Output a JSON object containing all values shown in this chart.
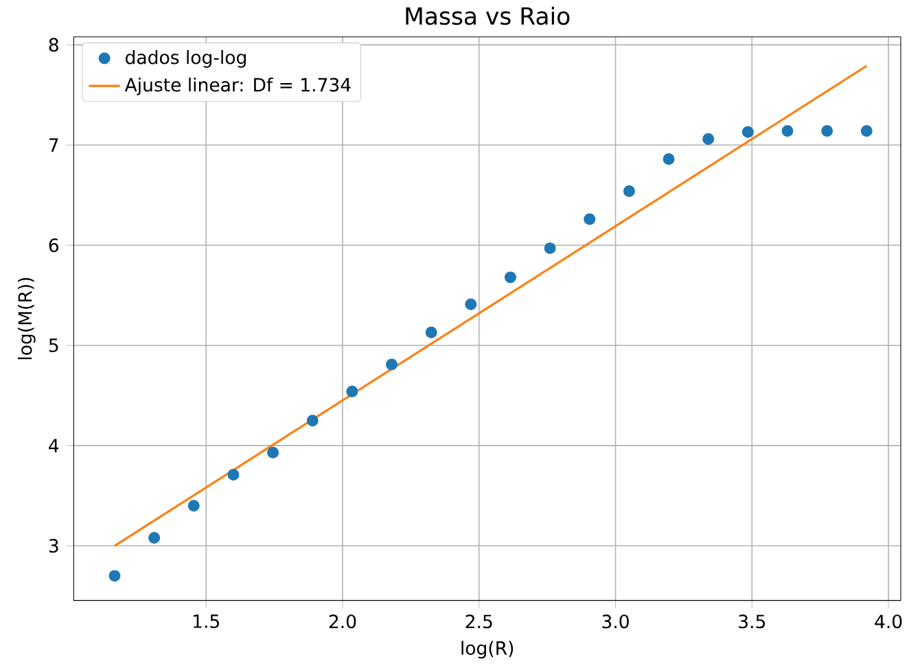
{
  "chart_data": {
    "type": "scatter",
    "title": "Massa vs Raio",
    "xlabel": "log(R)",
    "ylabel": "log(M(R))",
    "xlim": [
      1.015,
      4.045
    ],
    "ylim": [
      2.455,
      8.08
    ],
    "xticks": [
      1.5,
      {
        "value": 2,
        "label": "2.0"
      },
      2.5,
      {
        "value": 3,
        "label": "3.0"
      },
      3.5,
      {
        "value": 4,
        "label": "4.0"
      }
    ],
    "yticks": [
      3,
      4,
      5,
      6,
      7,
      8
    ],
    "grid": true,
    "legend": "top left",
    "series": [
      {
        "name": "dados log-log",
        "color": "#1f77b4",
        "x": [
          1.165,
          1.31,
          1.455,
          1.6,
          1.745,
          1.89,
          2.035,
          2.18,
          2.325,
          2.47,
          2.615,
          2.76,
          2.905,
          3.05,
          3.195,
          3.34,
          3.485,
          3.63,
          3.775,
          3.92
        ],
        "values": [
          2.7,
          3.08,
          3.4,
          3.71,
          3.93,
          4.25,
          4.54,
          4.81,
          5.13,
          5.41,
          5.68,
          5.97,
          6.26,
          6.54,
          6.86,
          7.06,
          7.13,
          7.14,
          7.14,
          7.14
        ]
      },
      {
        "name": "Ajuste linear: Df = 1.734",
        "type": "line",
        "color": "#ff7f0e",
        "x": [
          1.165,
          3.92
        ],
        "values": [
          3.0,
          7.79
        ]
      }
    ]
  }
}
